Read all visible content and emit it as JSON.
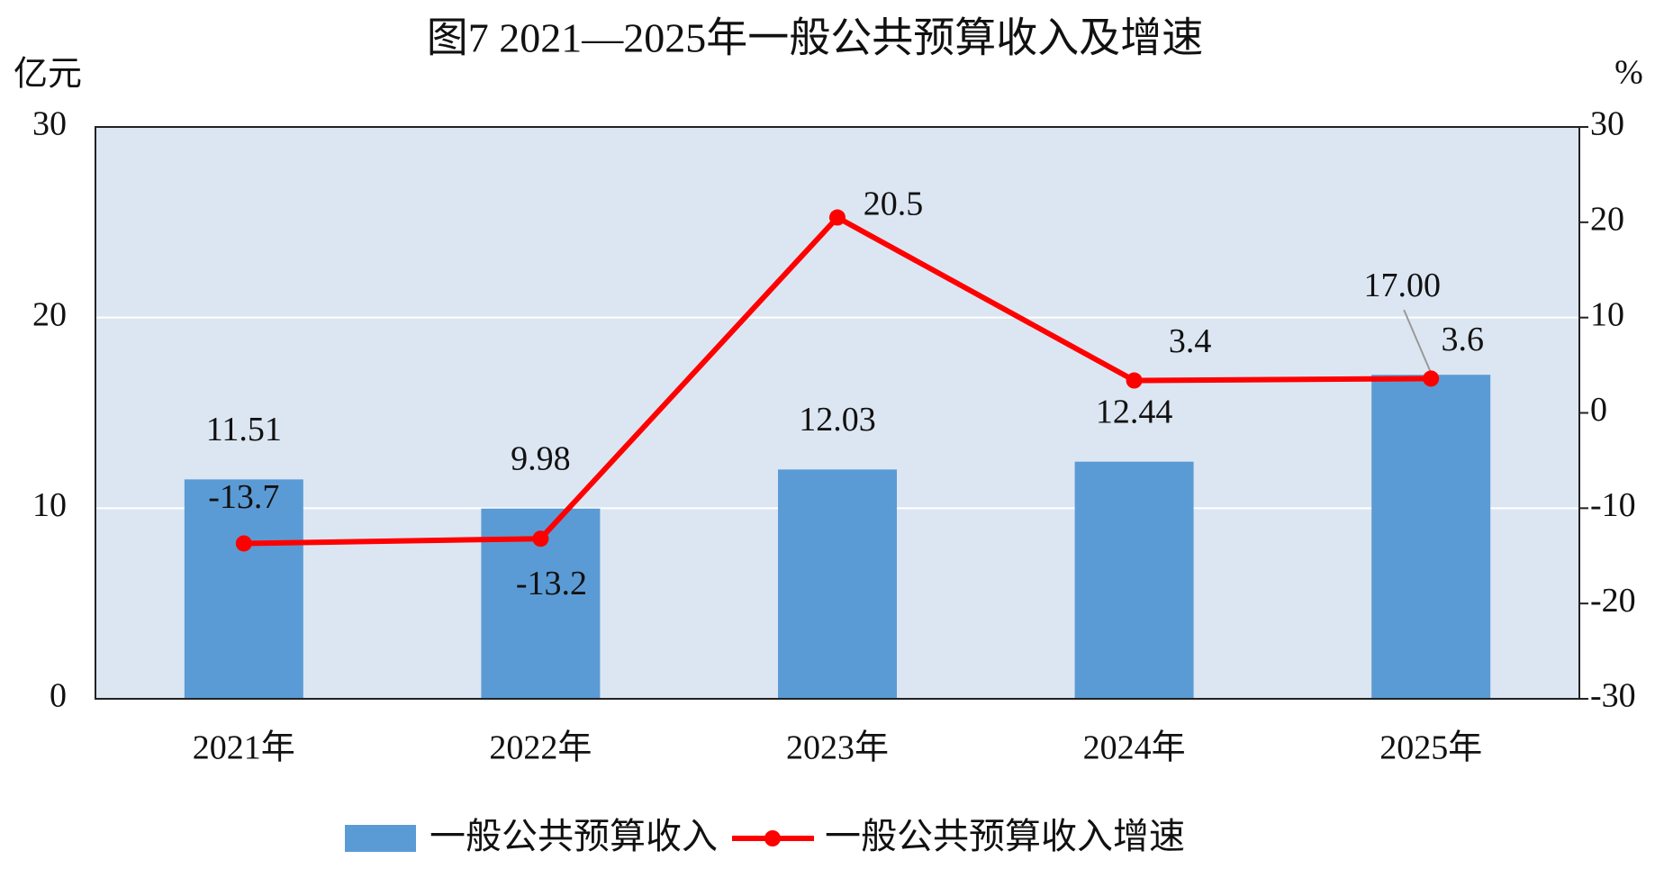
{
  "chart_data": {
    "type": "combo",
    "title": "图7 2021—2025年一般公共预算收入及增速",
    "y_label": "亿元",
    "y2_label": "%",
    "categories": [
      "2021年",
      "2022年",
      "2023年",
      "2024年",
      "2025年"
    ],
    "series": [
      {
        "name": "一般公共预算收入",
        "type": "bar",
        "color": "#5b9bd5",
        "values": [
          11.51,
          9.98,
          12.03,
          12.44,
          17
        ],
        "value_labels": [
          "11.51",
          "9.98",
          "12.03",
          "12.44",
          "17.00"
        ]
      },
      {
        "name": "一般公共预算收入增速",
        "type": "line",
        "axis": "y2",
        "color": "#ff0000",
        "values": [
          -13.7,
          -13.2,
          20.5,
          3.4,
          3.6
        ]
      }
    ],
    "ylim": [
      0,
      30
    ],
    "yticks": [
      0,
      10,
      20,
      30
    ],
    "y2lim": [
      -30,
      30
    ],
    "y2ticks": [
      -30,
      -20,
      -10,
      0,
      10,
      20,
      30
    ],
    "grid": true,
    "plot_background": "#dce6f2",
    "legend": "bottom"
  }
}
